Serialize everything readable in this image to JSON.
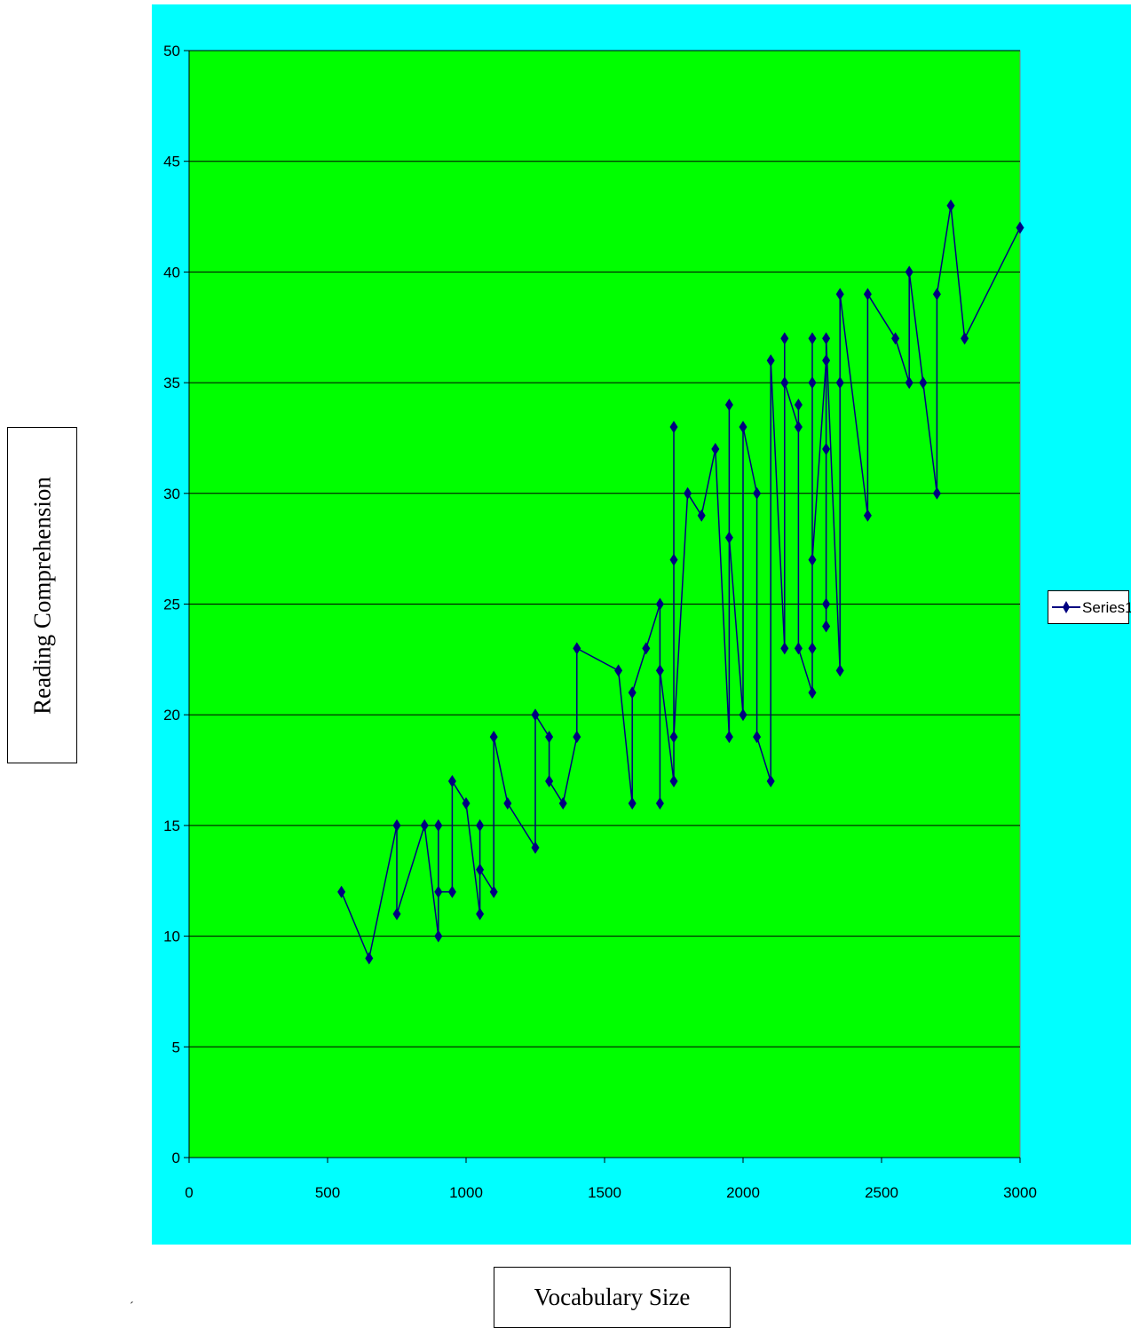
{
  "chart_data": {
    "type": "line",
    "xlabel": "Vocabulary Size",
    "ylabel": "Reading Comprehension",
    "xlim": [
      0,
      3000
    ],
    "ylim": [
      0,
      50
    ],
    "x_ticks": [
      "0",
      "500",
      "1000",
      "1500",
      "2000",
      "2500",
      "3000"
    ],
    "y_ticks": [
      "0",
      "5",
      "10",
      "15",
      "20",
      "25",
      "30",
      "35",
      "40",
      "45",
      "50"
    ],
    "grid": "horizontal",
    "legend": "right",
    "plot_background": "#00FF00",
    "chart_background": "#00FFFF",
    "series_color": "#000080",
    "marker": "diamond",
    "series": [
      {
        "name": "Series1",
        "x": [
          550,
          650,
          750,
          750,
          850,
          900,
          900,
          900,
          950,
          950,
          1000,
          1050,
          1050,
          1050,
          1100,
          1100,
          1150,
          1250,
          1250,
          1300,
          1300,
          1350,
          1400,
          1400,
          1550,
          1600,
          1600,
          1650,
          1700,
          1700,
          1700,
          1750,
          1750,
          1750,
          1750,
          1800,
          1850,
          1900,
          1950,
          1950,
          1950,
          2000,
          2000,
          2050,
          2050,
          2100,
          2100,
          2150,
          2150,
          2150,
          2200,
          2200,
          2200,
          2250,
          2250,
          2250,
          2250,
          2250,
          2300,
          2300,
          2300,
          2300,
          2300,
          2350,
          2350,
          2350,
          2450,
          2450,
          2550,
          2600,
          2600,
          2650,
          2700,
          2700,
          2750,
          2800,
          3000
        ],
        "y": [
          12,
          9,
          15,
          11,
          15,
          10,
          15,
          12,
          12,
          17,
          16,
          11,
          15,
          13,
          12,
          19,
          16,
          14,
          20,
          19,
          17,
          16,
          19,
          23,
          22,
          16,
          21,
          23,
          25,
          16,
          22,
          17,
          27,
          33,
          19,
          30,
          29,
          32,
          19,
          34,
          28,
          20,
          33,
          30,
          19,
          17,
          36,
          23,
          37,
          35,
          33,
          34,
          23,
          21,
          37,
          23,
          35,
          27,
          36,
          32,
          25,
          24,
          37,
          22,
          35,
          39,
          29,
          39,
          37,
          35,
          40,
          35,
          30,
          39,
          43,
          37,
          42
        ]
      }
    ]
  },
  "legend": {
    "label": "Series1"
  },
  "stray_mark": "´"
}
